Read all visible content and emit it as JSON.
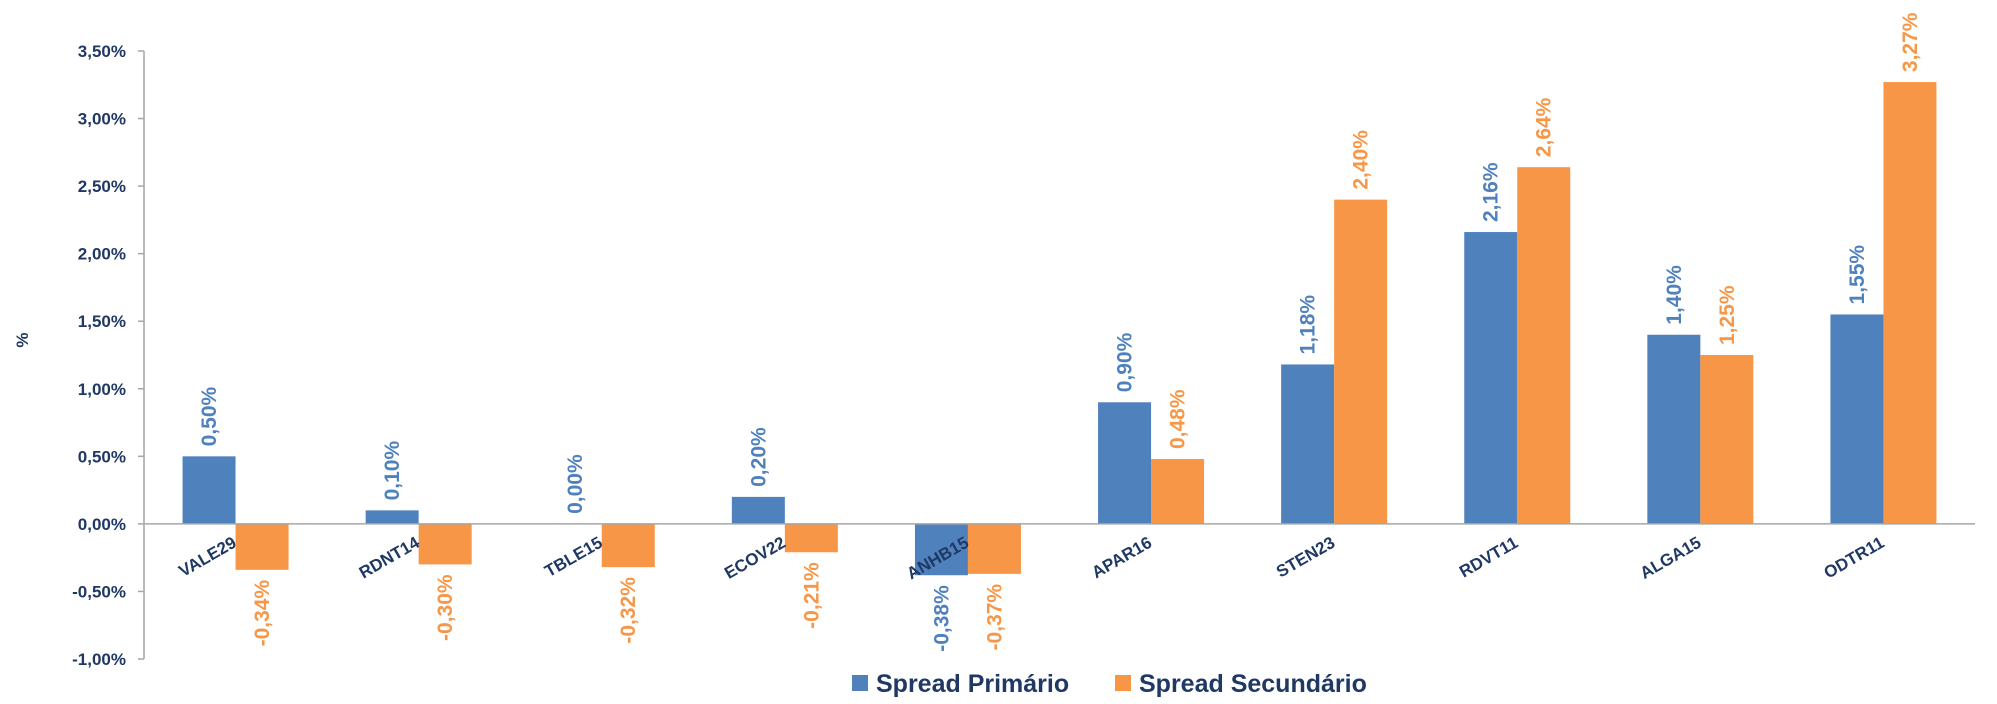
{
  "chart_data": {
    "type": "bar",
    "categories": [
      "VALE29",
      "RDNT14",
      "TBLE15",
      "ECOV22",
      "ANHB15",
      "APAR16",
      "STEN23",
      "RDVT11",
      "ALGA15",
      "ODTR11"
    ],
    "series": [
      {
        "name": "Spread Primário",
        "values": [
          0.5,
          0.1,
          0.0,
          0.2,
          -0.38,
          0.9,
          1.18,
          2.16,
          1.4,
          1.55
        ],
        "labels": [
          "0,50%",
          "0,10%",
          "0,00%",
          "0,20%",
          "-0,38%",
          "0,90%",
          "1,18%",
          "2,16%",
          "1,40%",
          "1,55%"
        ],
        "color": "#4f81bd",
        "label_color": "#4f81bd"
      },
      {
        "name": "Spread Secundário",
        "values": [
          -0.34,
          -0.3,
          -0.32,
          -0.21,
          -0.37,
          0.48,
          2.4,
          2.64,
          1.25,
          3.27
        ],
        "labels": [
          "-0,34%",
          "-0,30%",
          "-0,32%",
          "-0,21%",
          "-0,37%",
          "0,48%",
          "2,40%",
          "2,64%",
          "1,25%",
          "3,27%"
        ],
        "color": "#f79646",
        "label_color": "#f79646"
      }
    ],
    "ylabel": "%",
    "ylim": [
      -1.0,
      3.5
    ],
    "yticks": [
      -1.0,
      -0.5,
      0.0,
      0.5,
      1.0,
      1.5,
      2.0,
      2.5,
      3.0,
      3.5
    ],
    "ytick_labels": [
      "-1,00%",
      "-0,50%",
      "0,00%",
      "0,50%",
      "1,00%",
      "1,50%",
      "2,00%",
      "2,50%",
      "3,00%",
      "3,50%"
    ],
    "grid": false,
    "legend_position": "bottom",
    "axis_color": "#a6a6a6",
    "text_color": "#1f3864"
  }
}
